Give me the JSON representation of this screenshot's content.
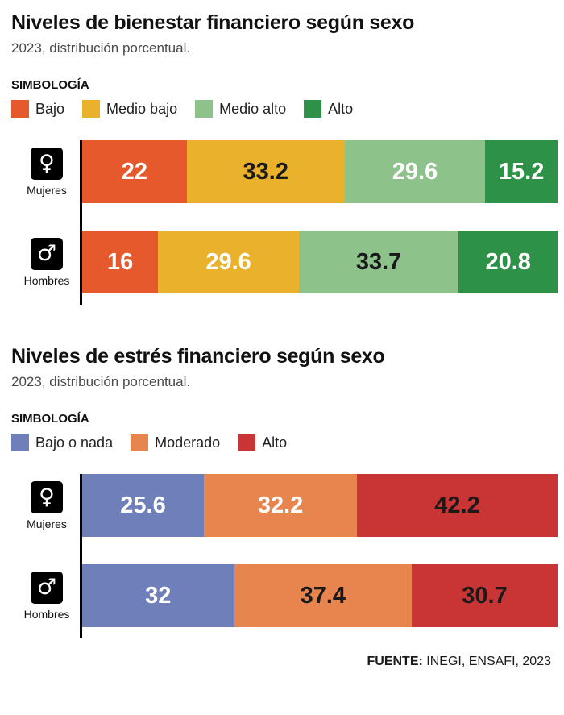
{
  "chart_data": [
    {
      "type": "bar",
      "stacked": true,
      "orientation": "horizontal",
      "title": "Niveles de bienestar financiero según sexo",
      "subtitle": "2023, distribución porcentual.",
      "legend_title": "SIMBOLOGÍA",
      "legend_position": "top",
      "x_range": [
        0,
        100
      ],
      "unit": "percent",
      "legend": [
        {
          "label": "Bajo",
          "color": "#e5592c"
        },
        {
          "label": "Medio bajo",
          "color": "#e9b12c"
        },
        {
          "label": "Medio alto",
          "color": "#8ec28b"
        },
        {
          "label": "Alto",
          "color": "#2d9147"
        }
      ],
      "rows": [
        {
          "label": "Mujeres",
          "icon": "female-symbol",
          "icon_glyph": "♀",
          "values": [
            22,
            33.2,
            29.6,
            15.2
          ],
          "value_label_tones": [
            "light",
            "dark",
            "light",
            "light"
          ]
        },
        {
          "label": "Hombres",
          "icon": "male-symbol",
          "icon_glyph": "♂",
          "values": [
            16,
            29.6,
            33.7,
            20.8
          ],
          "value_label_tones": [
            "light",
            "light",
            "dark",
            "light"
          ]
        }
      ]
    },
    {
      "type": "bar",
      "stacked": true,
      "orientation": "horizontal",
      "title": "Niveles de estrés financiero según sexo",
      "subtitle": "2023, distribución porcentual.",
      "legend_title": "SIMBOLOGÍA",
      "legend_position": "top",
      "x_range": [
        0,
        100
      ],
      "unit": "percent",
      "legend": [
        {
          "label": "Bajo o nada",
          "color": "#6e7fb9"
        },
        {
          "label": "Moderado",
          "color": "#e8854e"
        },
        {
          "label": "Alto",
          "color": "#c93434"
        }
      ],
      "rows": [
        {
          "label": "Mujeres",
          "icon": "female-symbol",
          "icon_glyph": "♀",
          "values": [
            25.6,
            32.2,
            42.2
          ],
          "value_label_tones": [
            "light",
            "light",
            "dark"
          ]
        },
        {
          "label": "Hombres",
          "icon": "male-symbol",
          "icon_glyph": "♂",
          "values": [
            32,
            37.4,
            30.7
          ],
          "value_label_tones": [
            "light",
            "dark",
            "dark"
          ]
        }
      ]
    }
  ],
  "footer": {
    "source_label": "FUENTE:",
    "source_text": " INEGI, ENSAFI, 2023"
  },
  "colors": {
    "title": "#111111",
    "subtitle": "#4a4a4a",
    "axis": "#000000",
    "dark_label": "#1a1a1a",
    "light_label": "#ffffff"
  }
}
